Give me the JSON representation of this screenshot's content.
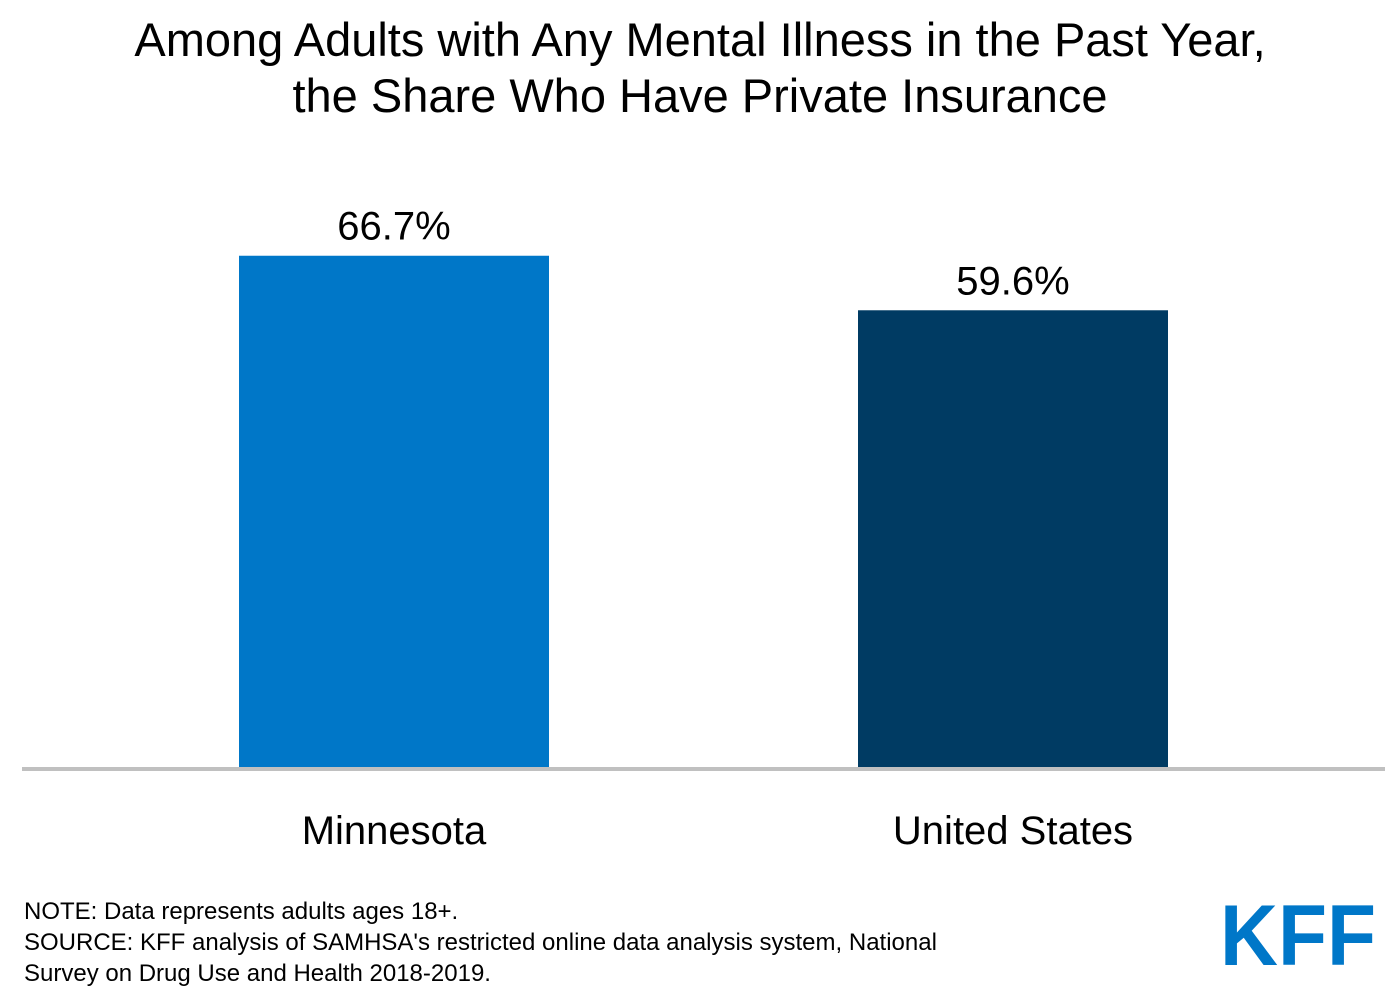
{
  "chart_data": {
    "type": "bar",
    "title_lines": [
      "Among Adults with Any Mental Illness in the Past Year,",
      "the Share Who Have Private Insurance"
    ],
    "categories": [
      "Minnesota",
      "United States"
    ],
    "values": [
      66.7,
      59.6
    ],
    "value_labels": [
      "66.7%",
      "59.6%"
    ],
    "colors": [
      "#0077c8",
      "#003b63"
    ],
    "axis_line_color": "#c0c0c0",
    "ylim": [
      0,
      100
    ],
    "grid": false,
    "legend": "none"
  },
  "footnote": {
    "note": "NOTE: Data represents adults ages 18+.",
    "source_line1": "SOURCE: KFF analysis of SAMHSA's restricted online data analysis system, National",
    "source_line2": "Survey on Drug Use and Health 2018-2019."
  },
  "logo": {
    "text": "KFF",
    "color": "#0077c8"
  }
}
